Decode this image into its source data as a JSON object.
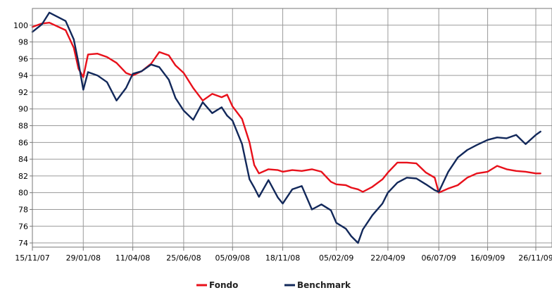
{
  "chart_data": {
    "type": "line",
    "title": "",
    "xlabel": "",
    "ylabel": "",
    "ylim": [
      73.5,
      102
    ],
    "grid": true,
    "legend": "bottom-center",
    "x_tick_labels": [
      "15/11/07",
      "29/01/08",
      "11/04/08",
      "25/06/08",
      "05/09/08",
      "18/11/08",
      "05/02/09",
      "22/04/09",
      "06/07/09",
      "16/09/09",
      "26/11/09"
    ],
    "y_ticks": [
      74,
      76,
      78,
      80,
      82,
      84,
      86,
      88,
      90,
      92,
      94,
      96,
      98,
      100
    ],
    "x": [
      "15/11/07",
      "29/11/07",
      "10/12/07",
      "03/01/08",
      "15/01/08",
      "22/01/08",
      "29/01/08",
      "05/02/08",
      "19/02/08",
      "04/03/08",
      "18/03/08",
      "01/04/08",
      "11/04/08",
      "24/04/08",
      "08/05/08",
      "20/05/08",
      "03/06/08",
      "13/06/08",
      "25/06/08",
      "09/07/08",
      "23/07/08",
      "06/08/08",
      "20/08/08",
      "28/08/08",
      "05/09/08",
      "19/09/08",
      "30/09/08",
      "07/10/08",
      "14/10/08",
      "28/10/08",
      "11/11/08",
      "18/11/08",
      "02/12/08",
      "16/12/08",
      "31/12/08",
      "14/01/09",
      "28/01/09",
      "05/02/09",
      "19/02/09",
      "27/02/09",
      "09/03/09",
      "16/03/09",
      "30/03/09",
      "14/04/09",
      "22/04/09",
      "06/05/09",
      "20/05/09",
      "03/06/09",
      "17/06/09",
      "30/06/09",
      "06/07/09",
      "20/07/09",
      "03/08/09",
      "17/08/09",
      "31/08/09",
      "16/09/09",
      "30/09/09",
      "14/10/09",
      "28/10/09",
      "11/11/09",
      "26/11/09",
      "03/12/09"
    ],
    "series": [
      {
        "name": "Fondo",
        "color": "#e8101a",
        "values": [
          99.8,
          100.2,
          100.3,
          99.4,
          97.3,
          94.8,
          93.8,
          96.5,
          96.6,
          96.2,
          95.5,
          94.3,
          94.0,
          94.5,
          95.4,
          96.8,
          96.4,
          95.2,
          94.3,
          92.5,
          91.0,
          91.8,
          91.4,
          91.7,
          90.3,
          88.8,
          86.0,
          83.3,
          82.3,
          82.8,
          82.7,
          82.5,
          82.7,
          82.6,
          82.8,
          82.5,
          81.3,
          81.0,
          80.9,
          80.6,
          80.4,
          80.1,
          80.7,
          81.6,
          82.4,
          83.6,
          83.6,
          83.5,
          82.4,
          81.8,
          80.0,
          80.5,
          80.9,
          81.8,
          82.3,
          82.5,
          83.2,
          82.8,
          82.6,
          82.5,
          82.3,
          82.3
        ]
      },
      {
        "name": "Benchmark",
        "color": "#12285a",
        "values": [
          99.2,
          100.1,
          101.5,
          100.5,
          98.3,
          95.5,
          92.3,
          94.4,
          94.0,
          93.2,
          91.0,
          92.5,
          94.2,
          94.5,
          95.3,
          95.0,
          93.5,
          91.3,
          89.8,
          88.7,
          90.8,
          89.5,
          90.2,
          89.2,
          88.6,
          85.8,
          81.6,
          80.6,
          79.5,
          81.5,
          79.4,
          78.7,
          80.4,
          80.8,
          78.0,
          78.6,
          77.9,
          76.4,
          75.7,
          74.8,
          74.0,
          75.6,
          77.3,
          78.7,
          80.0,
          81.2,
          81.8,
          81.7,
          81.0,
          80.3,
          80.1,
          82.5,
          84.2,
          85.1,
          85.7,
          86.3,
          86.6,
          86.5,
          86.9,
          85.8,
          86.9,
          87.3
        ]
      }
    ]
  }
}
